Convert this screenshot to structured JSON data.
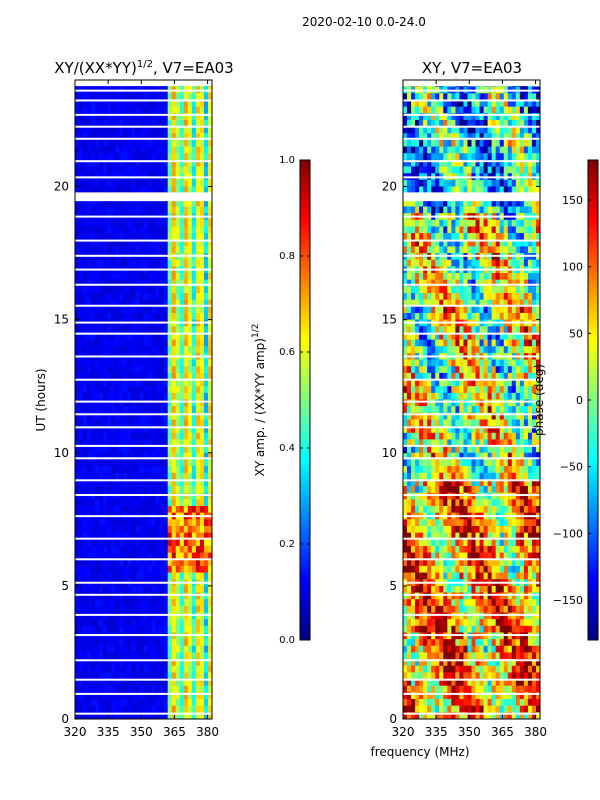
{
  "suptitle": "2020-02-10 0.0-24.0",
  "colors": {
    "jet": [
      "#00007f",
      "#0000ff",
      "#007fff",
      "#00ffff",
      "#7fff7f",
      "#ffff00",
      "#ff7f00",
      "#ff0000",
      "#7f0000"
    ]
  },
  "chart_data": [
    {
      "type": "heatmap",
      "title": "XY/(XX*YY)",
      "title_exponent": "1/2",
      "title_suffix": ", V7=EA03",
      "xlabel": "",
      "ylabel": "UT (hours)",
      "xlim": [
        320,
        382
      ],
      "ylim": [
        0,
        24
      ],
      "xticks": [
        320,
        335,
        350,
        365,
        380
      ],
      "yticks": [
        0,
        5,
        10,
        15,
        20
      ],
      "colorbar": {
        "label": "XY amp. / (XX*YY amp)",
        "label_exponent": "1/2",
        "range": [
          0.0,
          1.0
        ],
        "ticks": [
          "0.0",
          "0.2",
          "0.4",
          "0.6",
          "0.8",
          "1.0"
        ]
      }
    },
    {
      "type": "heatmap",
      "title": "XY, V7=EA03",
      "xlabel": "frequency (MHz)",
      "ylabel": "",
      "xlim": [
        320,
        382
      ],
      "ylim": [
        0,
        24
      ],
      "xticks": [
        320,
        335,
        350,
        365,
        380
      ],
      "yticks": [
        0,
        5,
        10,
        15,
        20
      ],
      "colorbar": {
        "label": "phase (deg)",
        "range": [
          -180,
          180
        ],
        "ticks": [
          "150",
          "100",
          "50",
          "0",
          "−50",
          "−100",
          "−150"
        ]
      }
    }
  ]
}
